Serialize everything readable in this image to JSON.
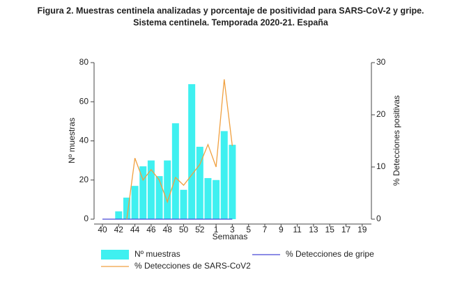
{
  "chart_data": {
    "type": "bar_line",
    "title": "Figura 2. Muestras centinela analizadas y porcentaje de positividad para SARS-CoV-2 y gripe.",
    "subtitle": "Sistema centinela. Temporada 2020-21. España",
    "x_label": "Semanas",
    "y_label": "Nº muestras",
    "y2_label": "% Detecciones positivas",
    "categories": [
      "40",
      null,
      "42",
      null,
      "44",
      null,
      "46",
      null,
      "48",
      null,
      "50",
      null,
      "52",
      null,
      "1",
      null,
      "3",
      null,
      "5",
      null,
      "7",
      null,
      "9",
      null,
      "11",
      null,
      "13",
      null,
      "15",
      null,
      "17",
      null,
      "19",
      null
    ],
    "ylim": [
      0,
      80
    ],
    "yticks": [
      0,
      20,
      40,
      60,
      80
    ],
    "y2lim": [
      0,
      30
    ],
    "y2ticks": [
      0,
      10,
      20,
      30
    ],
    "series": [
      {
        "name": "Nº muestras",
        "kind": "bar",
        "color": "#3ff0f0",
        "values": [
          null,
          null,
          4,
          11,
          17,
          27,
          30,
          22,
          30,
          49,
          15,
          69,
          37,
          21,
          20,
          45,
          38,
          null,
          null,
          null,
          null,
          null,
          null,
          null,
          null,
          null,
          null,
          null,
          null,
          null,
          null,
          null,
          null,
          null
        ]
      },
      {
        "name": "% Detecciones de gripe",
        "kind": "line",
        "axis": "y2",
        "color": "#4848d8",
        "values": [
          0,
          0,
          0,
          0,
          0,
          0,
          0,
          0,
          0,
          0,
          0,
          0,
          0,
          0,
          0,
          0,
          0,
          null,
          null,
          null,
          null,
          null,
          null,
          null,
          null,
          null,
          null,
          null,
          null,
          null,
          null,
          null,
          null,
          null
        ]
      },
      {
        "name": "% Detecciones de SARS-CoV2",
        "kind": "line",
        "axis": "y2",
        "color": "#f0a040",
        "values": [
          null,
          null,
          null,
          0,
          11.7,
          7.5,
          9.5,
          7.5,
          3.3,
          8,
          6.5,
          8.5,
          10.5,
          14.3,
          10,
          26.8,
          14,
          null,
          null,
          null,
          null,
          null,
          null,
          null,
          null,
          null,
          null,
          null,
          null,
          null,
          null,
          null,
          null,
          null
        ]
      }
    ]
  }
}
